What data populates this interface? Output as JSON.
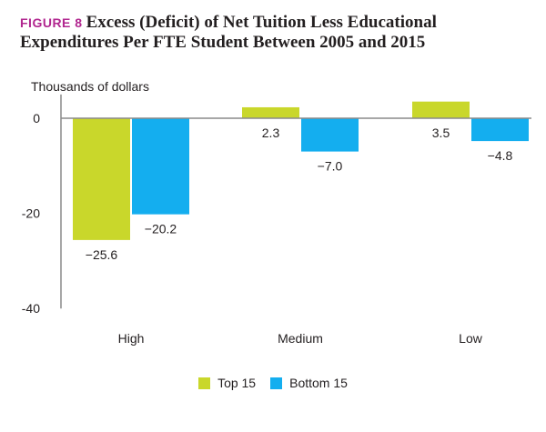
{
  "figure": {
    "label": "FIGURE 8",
    "title": "Excess (Deficit) of Net Tuition Less Educational Expenditures Per FTE Student Between 2005 and 2015"
  },
  "colors": {
    "top15": "#c9d72b",
    "bottom15": "#14aeef",
    "axis": "#8a8a8a",
    "text": "#231f20",
    "figure_label": "#b1268f"
  },
  "chart_data": {
    "type": "bar",
    "title": "Excess (Deficit) of Net Tuition Less Educational Expenditures Per FTE Student Between 2005 and 2015",
    "ylabel": "Thousands of dollars",
    "xlabel": "",
    "categories": [
      "High",
      "Medium",
      "Low"
    ],
    "series": [
      {
        "name": "Top 15",
        "values": [
          -25.6,
          2.3,
          3.5
        ],
        "labels": [
          "−25.6",
          "2.3",
          "3.5"
        ]
      },
      {
        "name": "Bottom 15",
        "values": [
          -20.2,
          -7.0,
          -4.8
        ],
        "labels": [
          "−20.2",
          "−7.0",
          "−4.8"
        ]
      }
    ],
    "ylim": [
      -40,
      5
    ],
    "yticks": [
      0,
      -20,
      -40
    ],
    "ytick_labels": [
      "0",
      "-20",
      "-40"
    ],
    "grid": false,
    "legend": "bottom-center"
  }
}
